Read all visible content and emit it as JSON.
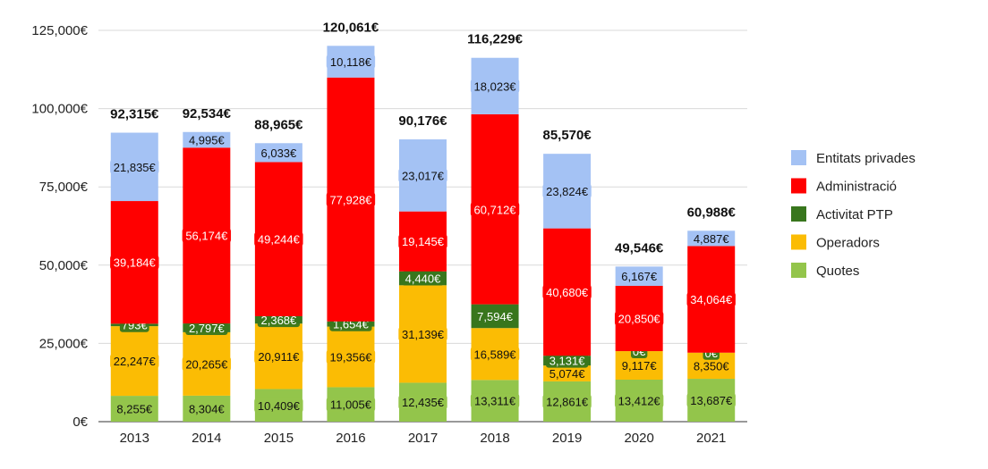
{
  "chart_data": {
    "type": "bar",
    "stacked": true,
    "title": "",
    "xlabel": "",
    "ylabel": "",
    "ylim": [
      0,
      125000
    ],
    "y_ticks": [
      0,
      25000,
      50000,
      75000,
      100000,
      125000
    ],
    "y_tick_labels": [
      "0€",
      "25,000€",
      "50,000€",
      "75,000€",
      "100,000€",
      "125,000€"
    ],
    "grid": "horizontal",
    "legend_position": "right",
    "categories": [
      "2013",
      "2014",
      "2015",
      "2016",
      "2017",
      "2018",
      "2019",
      "2020",
      "2021"
    ],
    "series": [
      {
        "name": "Quotes",
        "color": "#93c54b",
        "values": [
          8255,
          8304,
          10409,
          11005,
          12435,
          13311,
          12861,
          13412,
          13687
        ],
        "labels": [
          "8,255€",
          "8,304€",
          "10,409€",
          "11,005€",
          "12,435€",
          "13,311€",
          "12,861€",
          "13,412€",
          "13,687€"
        ],
        "label_color": "#111111"
      },
      {
        "name": "Operadors",
        "color": "#fbbc04",
        "values": [
          22247,
          20265,
          20911,
          19356,
          31139,
          16589,
          5074,
          9117,
          8350
        ],
        "labels": [
          "22,247€",
          "20,265€",
          "20,911€",
          "19,356€",
          "31,139€",
          "16,589€",
          "5,074€",
          "9,117€",
          "8,350€"
        ],
        "label_color": "#111111"
      },
      {
        "name": "Activitat PTP",
        "color": "#38761d",
        "values": [
          793,
          2797,
          2368,
          1654,
          4440,
          7594,
          3131,
          0,
          0
        ],
        "labels": [
          "793€",
          "2,797€",
          "2,368€",
          "1,654€",
          "4,440€",
          "7,594€",
          "3,131€",
          "0€",
          "0€"
        ],
        "label_color": "#ffffff"
      },
      {
        "name": "Administració",
        "color": "#ff0000",
        "values": [
          39184,
          56174,
          49244,
          77928,
          19145,
          60712,
          40680,
          20850,
          34064
        ],
        "labels": [
          "39,184€",
          "56,174€",
          "49,244€",
          "77,928€",
          "19,145€",
          "60,712€",
          "40,680€",
          "20,850€",
          "34,064€"
        ],
        "label_color": "#ffffff"
      },
      {
        "name": "Entitats privades",
        "color": "#a4c2f4",
        "values": [
          21835,
          4995,
          6033,
          10118,
          23017,
          18023,
          23824,
          6167,
          4887
        ],
        "labels": [
          "21,835€",
          "4,995€",
          "6,033€",
          "10,118€",
          "23,017€",
          "18,023€",
          "23,824€",
          "6,167€",
          "4,887€"
        ],
        "label_color": "#111111"
      }
    ],
    "totals": [
      92315,
      92534,
      88965,
      120061,
      90176,
      116229,
      85570,
      49546,
      60988
    ],
    "total_labels": [
      "92,315€",
      "92,534€",
      "88,965€",
      "120,061€",
      "90,176€",
      "116,229€",
      "85,570€",
      "49,546€",
      "60,988€"
    ],
    "legend_order": [
      "Entitats privades",
      "Administració",
      "Activitat PTP",
      "Operadors",
      "Quotes"
    ]
  }
}
